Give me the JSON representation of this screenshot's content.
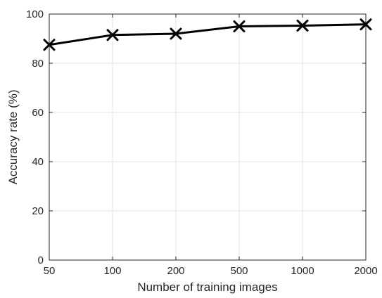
{
  "chart_data": {
    "type": "line",
    "title": "",
    "xlabel": "Number of training images",
    "ylabel": "Accuracy rate (%)",
    "categories": [
      "50",
      "100",
      "200",
      "500",
      "1000",
      "2000"
    ],
    "x_scale": "categorical",
    "ylim": [
      0,
      100
    ],
    "yticks": [
      0,
      20,
      40,
      60,
      80,
      100
    ],
    "grid": true,
    "legend": "none",
    "series": [
      {
        "values": [
          87.5,
          91.5,
          92,
          95,
          95.3,
          95.8
        ],
        "color": "#000000",
        "marker": "x"
      }
    ]
  }
}
